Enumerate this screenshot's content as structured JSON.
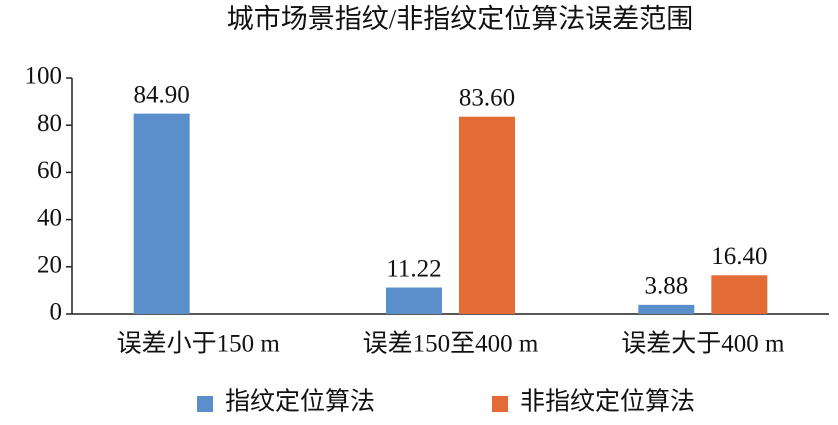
{
  "chart_data": {
    "type": "bar",
    "title": "城市场景指纹/非指纹定位算法误差范围",
    "categories": [
      "误差小于150 m",
      "误差150至400 m",
      "误差大于400 m"
    ],
    "series": [
      {
        "name": "指纹定位算法",
        "color": "#5b8fcc",
        "values": [
          84.9,
          11.22,
          3.88
        ],
        "value_labels": [
          "84.90",
          "11.22",
          "3.88"
        ]
      },
      {
        "name": "非指纹定位算法",
        "color": "#e36b35",
        "values": [
          null,
          83.6,
          16.4
        ],
        "value_labels": [
          null,
          "83.60",
          "16.40"
        ]
      }
    ],
    "ylim": [
      0,
      100
    ],
    "yticks": [
      0,
      20,
      40,
      60,
      80,
      100
    ],
    "grid": false
  }
}
